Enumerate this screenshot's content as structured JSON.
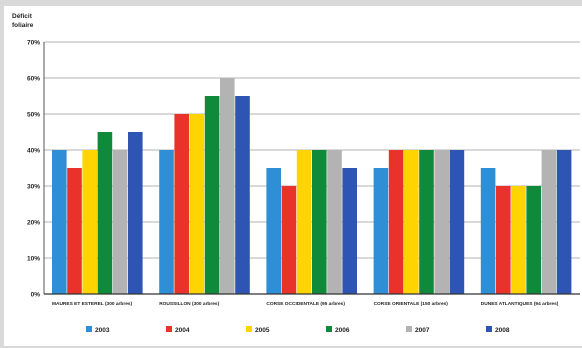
{
  "chart_data": {
    "type": "bar",
    "ylabel_lines": [
      "Déficit",
      "foliaire"
    ],
    "ylim": [
      0,
      70
    ],
    "yticks": [
      "0%",
      "10%",
      "20%",
      "30%",
      "40%",
      "50%",
      "60%",
      "70%"
    ],
    "grid": true,
    "legend_position": "bottom",
    "categories": [
      "MAURES ET ESTEREL (300 arbres)",
      "ROUSSILLON (300 arbres)",
      "CORSE OCCIDENTALE (95 arbres)",
      "CORSE ORIENTALE (150 arbres)",
      "DUNES ATLANTIQUES (94 arbres)"
    ],
    "series": [
      {
        "name": "2003",
        "color": "#2f8fd6",
        "values": [
          40,
          40,
          35,
          35,
          35
        ]
      },
      {
        "name": "2004",
        "color": "#e8322a",
        "values": [
          35,
          50,
          30,
          40,
          30
        ]
      },
      {
        "name": "2005",
        "color": "#ffd400",
        "values": [
          40,
          50,
          40,
          40,
          30
        ]
      },
      {
        "name": "2006",
        "color": "#0f8a3a",
        "values": [
          45,
          55,
          40,
          40,
          30
        ]
      },
      {
        "name": "2007",
        "color": "#b3b3b3",
        "values": [
          40,
          60,
          40,
          40,
          40
        ]
      },
      {
        "name": "2008",
        "color": "#2f55b4",
        "values": [
          45,
          55,
          35,
          40,
          40
        ]
      }
    ]
  }
}
